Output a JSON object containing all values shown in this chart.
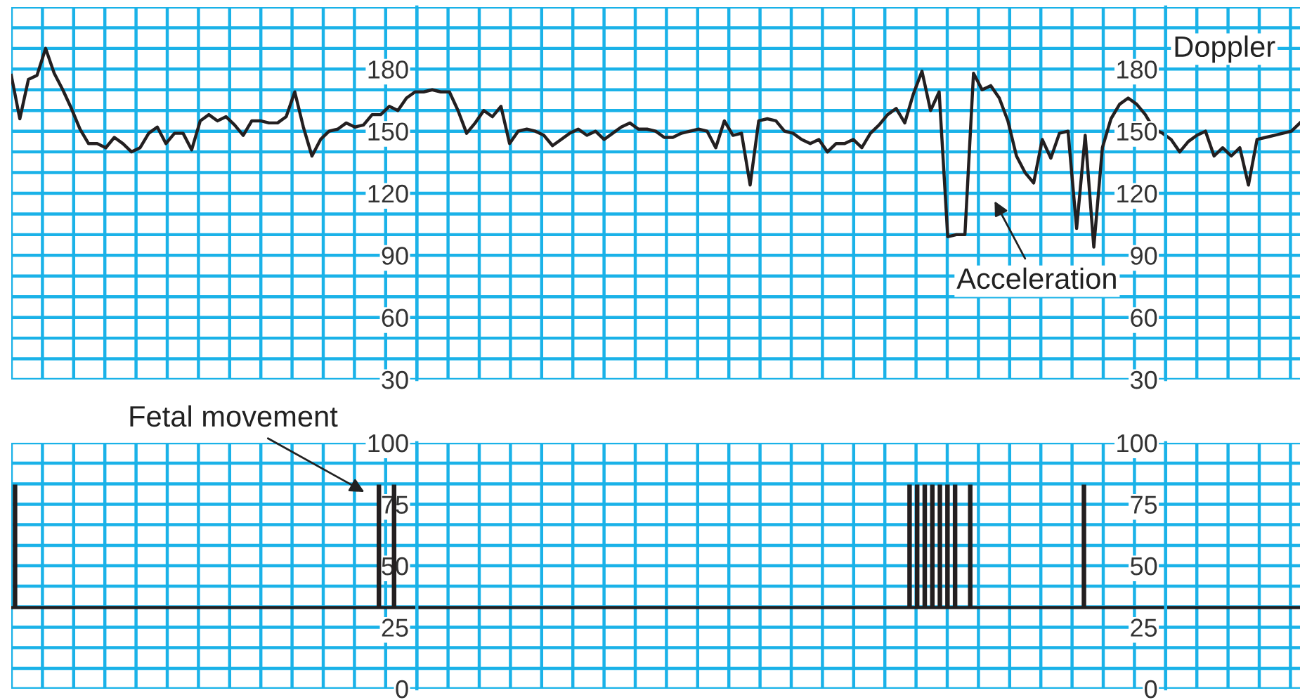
{
  "chart_data": [
    {
      "type": "line",
      "categories": [
        null,
        null,
        null,
        null,
        null,
        null,
        null,
        null,
        null,
        null,
        null,
        null,
        null,
        null,
        null,
        null,
        null,
        null,
        null,
        null,
        null,
        null,
        null,
        null,
        null,
        null,
        null,
        null,
        null,
        null,
        null,
        null,
        null,
        null,
        null,
        null,
        null,
        null,
        null,
        null,
        null,
        null,
        null,
        null,
        null,
        null,
        null,
        null,
        null,
        null,
        null,
        null,
        null,
        null,
        null,
        null,
        null,
        null,
        null,
        null,
        null,
        null,
        null,
        null,
        null,
        null,
        null,
        null,
        null,
        null,
        null,
        null,
        null,
        null,
        null,
        null,
        null,
        null,
        null,
        null,
        null,
        null,
        null,
        null,
        null,
        null,
        null,
        null,
        null,
        null,
        null,
        null,
        null,
        null,
        null,
        null,
        null,
        null,
        null,
        null,
        null,
        null,
        null,
        null,
        null,
        null,
        null,
        null,
        null,
        null,
        null,
        null,
        null,
        null,
        null,
        null,
        null,
        null,
        null,
        null,
        null,
        null,
        null,
        null,
        null,
        null,
        null,
        null,
        null,
        null,
        null,
        null,
        null,
        null,
        null,
        null,
        null,
        null,
        null,
        null,
        null,
        null,
        null,
        null,
        null,
        null,
        null,
        null,
        null,
        null,
        null
      ],
      "series": [
        {
          "color": "#231f20",
          "values": [
            177,
            156,
            175,
            177,
            190,
            178,
            170,
            161,
            151,
            144,
            144,
            142,
            147,
            144,
            140,
            142,
            149,
            152,
            144,
            149,
            149,
            141,
            155,
            158,
            155,
            157,
            153,
            148,
            155,
            155,
            154,
            154,
            157,
            169,
            152,
            138,
            146,
            150,
            151,
            154,
            152,
            153,
            158,
            158,
            162,
            160,
            166,
            169,
            169,
            170,
            169,
            169,
            160,
            149,
            154,
            160,
            157,
            162,
            144,
            150,
            151,
            150,
            148,
            143,
            146,
            149,
            151,
            148,
            150,
            146,
            149,
            152,
            154,
            151,
            151,
            150,
            147,
            147,
            149,
            150,
            151,
            150,
            142,
            155,
            148,
            149,
            124,
            155,
            156,
            155,
            150,
            149,
            146,
            144,
            146,
            140,
            144,
            144,
            146,
            142,
            149,
            153,
            158,
            161,
            154,
            168,
            179,
            160,
            169,
            99,
            100,
            100,
            178,
            170,
            172,
            166,
            155,
            138,
            130,
            125,
            146,
            137,
            149,
            150,
            103,
            148,
            94,
            142,
            156,
            163,
            166,
            163,
            158,
            151,
            149,
            146,
            140,
            145,
            148,
            150,
            138,
            142,
            138,
            142,
            124,
            146,
            147,
            148,
            149,
            150,
            154
          ]
        }
      ],
      "ylim": [
        30,
        210
      ],
      "yticks": [
        30,
        {
          "value": 40,
          "label": null
        },
        {
          "value": 50,
          "label": null
        },
        60,
        {
          "value": 70,
          "label": null
        },
        {
          "value": 80,
          "label": null
        },
        90,
        {
          "value": 100,
          "label": null
        },
        {
          "value": 110,
          "label": null
        },
        120,
        {
          "value": 130,
          "label": null
        },
        {
          "value": 140,
          "label": null
        },
        150,
        {
          "value": 160,
          "label": null
        },
        {
          "value": 170,
          "label": null
        },
        180,
        {
          "value": 190,
          "label": null
        },
        {
          "value": 200,
          "label": null
        },
        {
          "value": 210,
          "label": null
        }
      ],
      "y2lim": [
        30,
        210
      ],
      "y2ticks": [
        30,
        {
          "value": 40,
          "label": null
        },
        {
          "value": 50,
          "label": null
        },
        60,
        {
          "value": 70,
          "label": null
        },
        {
          "value": 80,
          "label": null
        },
        90,
        {
          "value": 100,
          "label": null
        },
        {
          "value": 110,
          "label": null
        },
        120,
        {
          "value": 130,
          "label": null
        },
        {
          "value": 140,
          "label": null
        },
        150,
        {
          "value": 160,
          "label": null
        },
        {
          "value": 170,
          "label": null
        },
        180,
        {
          "value": 190,
          "label": null
        },
        {
          "value": 200,
          "label": null
        },
        {
          "value": 210,
          "label": null
        }
      ],
      "tick_labels": "y",
      "grid": true,
      "line_style": "solid",
      "annotations": [
        "Doppler",
        "Acceleration"
      ]
    },
    {
      "type": "bar",
      "categories": [
        null,
        null,
        null,
        null,
        null,
        null,
        null,
        null,
        null,
        null,
        null,
        null,
        null,
        null,
        null,
        null,
        null,
        null,
        null,
        null,
        null,
        null,
        null,
        null,
        null,
        null,
        null,
        null,
        null,
        null,
        null,
        null,
        null,
        null,
        null,
        null,
        null,
        null,
        null,
        null,
        null,
        null,
        null,
        null,
        null,
        null,
        null,
        null,
        null,
        null,
        null,
        null,
        null,
        null,
        null,
        null,
        null,
        null,
        null,
        null,
        null,
        null,
        null,
        null,
        null,
        null,
        null,
        null,
        null,
        null,
        null,
        null,
        null,
        null,
        null,
        null,
        null,
        null,
        null,
        null,
        null,
        null,
        null,
        null,
        null,
        null,
        null,
        null,
        null,
        null,
        null,
        null,
        null,
        null,
        null,
        null,
        null,
        null,
        null,
        null,
        null,
        null,
        null,
        null,
        null,
        null,
        null,
        null,
        null,
        null,
        null,
        null,
        null,
        null,
        null,
        null,
        null,
        null,
        null,
        null,
        null,
        null,
        null,
        null,
        null,
        null,
        null,
        null,
        null,
        null,
        null,
        null,
        null,
        null,
        null,
        null,
        null,
        null,
        null,
        null,
        null,
        null,
        null,
        null,
        null,
        null,
        null,
        null,
        null,
        null,
        null,
        null,
        null,
        null,
        null,
        null,
        null,
        null,
        null,
        null,
        null,
        null,
        null,
        null,
        null,
        null,
        null,
        null,
        null,
        null
      ],
      "series": [
        {
          "color": "#231f20",
          "values": [
            50,
            null,
            null,
            null,
            null,
            null,
            null,
            null,
            null,
            null,
            null,
            null,
            null,
            null,
            null,
            null,
            null,
            null,
            null,
            null,
            null,
            null,
            null,
            null,
            null,
            null,
            null,
            null,
            null,
            null,
            null,
            null,
            null,
            null,
            null,
            null,
            null,
            null,
            null,
            null,
            null,
            null,
            null,
            null,
            null,
            null,
            null,
            null,
            50,
            null,
            50,
            null,
            null,
            null,
            null,
            null,
            null,
            null,
            null,
            null,
            null,
            null,
            null,
            null,
            null,
            null,
            null,
            null,
            null,
            null,
            null,
            null,
            null,
            null,
            null,
            null,
            null,
            null,
            null,
            null,
            null,
            null,
            null,
            null,
            null,
            null,
            null,
            null,
            null,
            null,
            null,
            null,
            null,
            null,
            null,
            null,
            null,
            null,
            null,
            null,
            null,
            null,
            null,
            null,
            null,
            null,
            null,
            null,
            null,
            null,
            null,
            null,
            null,
            null,
            null,
            null,
            null,
            null,
            50,
            50,
            50,
            50,
            50,
            50,
            50,
            null,
            50,
            null,
            null,
            null,
            null,
            null,
            null,
            null,
            null,
            null,
            null,
            null,
            null,
            null,
            null,
            50,
            null,
            null,
            null,
            null,
            null,
            null,
            null,
            null,
            null,
            null,
            null,
            null,
            null,
            null,
            null,
            null,
            null,
            null,
            null,
            null,
            null,
            null,
            null,
            null,
            null,
            null,
            null,
            null
          ],
          "base": [
            33,
            null,
            null,
            null,
            null,
            null,
            null,
            null,
            null,
            null,
            null,
            null,
            null,
            null,
            null,
            null,
            null,
            null,
            null,
            null,
            null,
            null,
            null,
            null,
            null,
            null,
            null,
            null,
            null,
            null,
            null,
            null,
            null,
            null,
            null,
            null,
            null,
            null,
            null,
            null,
            null,
            null,
            null,
            null,
            null,
            null,
            null,
            null,
            33,
            null,
            33,
            null,
            null,
            null,
            null,
            null,
            null,
            null,
            null,
            null,
            null,
            null,
            null,
            null,
            null,
            null,
            null,
            null,
            null,
            null,
            null,
            null,
            null,
            null,
            null,
            null,
            null,
            null,
            null,
            null,
            null,
            null,
            null,
            null,
            null,
            null,
            null,
            null,
            null,
            null,
            null,
            null,
            null,
            null,
            null,
            null,
            null,
            null,
            null,
            null,
            null,
            null,
            null,
            null,
            null,
            null,
            null,
            null,
            null,
            null,
            null,
            null,
            null,
            null,
            null,
            null,
            null,
            null,
            33,
            33,
            33,
            33,
            33,
            33,
            33,
            null,
            33,
            null,
            null,
            null,
            null,
            null,
            null,
            null,
            null,
            null,
            null,
            null,
            null,
            null,
            null,
            33,
            null,
            null,
            null,
            null,
            null,
            null,
            null,
            null,
            null,
            null,
            null,
            null,
            null,
            null,
            null,
            null,
            null,
            null,
            null,
            null,
            null,
            null,
            null,
            null,
            null,
            null,
            null,
            null
          ]
        }
      ],
      "ylim": [
        0,
        100
      ],
      "yticks": [
        0,
        {
          "value": 8.3,
          "label": null
        },
        {
          "value": 16.7,
          "label": null
        },
        25,
        {
          "value": 33.3,
          "label": null
        },
        {
          "value": 41.7,
          "label": null
        },
        50,
        {
          "value": 58.3,
          "label": null
        },
        {
          "value": 66.7,
          "label": null
        },
        75,
        {
          "value": 83.3,
          "label": null
        },
        {
          "value": 91.7,
          "label": null
        },
        100
      ],
      "y2lim": [
        0,
        100
      ],
      "y2ticks": [
        0,
        {
          "value": 8.3,
          "label": null
        },
        {
          "value": 16.7,
          "label": null
        },
        25,
        {
          "value": 33.3,
          "label": null
        },
        {
          "value": 41.7,
          "label": null
        },
        50,
        {
          "value": 58.3,
          "label": null
        },
        {
          "value": 66.7,
          "label": null
        },
        75,
        {
          "value": 83.3,
          "label": null
        },
        {
          "value": 91.7,
          "label": null
        },
        100
      ],
      "tick_labels": "y",
      "grid": true,
      "ref_lines": [
        {
          "axis": "y",
          "value": 33,
          "color": "#231f20"
        }
      ],
      "annotations": [
        "Fetal movement"
      ]
    }
  ]
}
